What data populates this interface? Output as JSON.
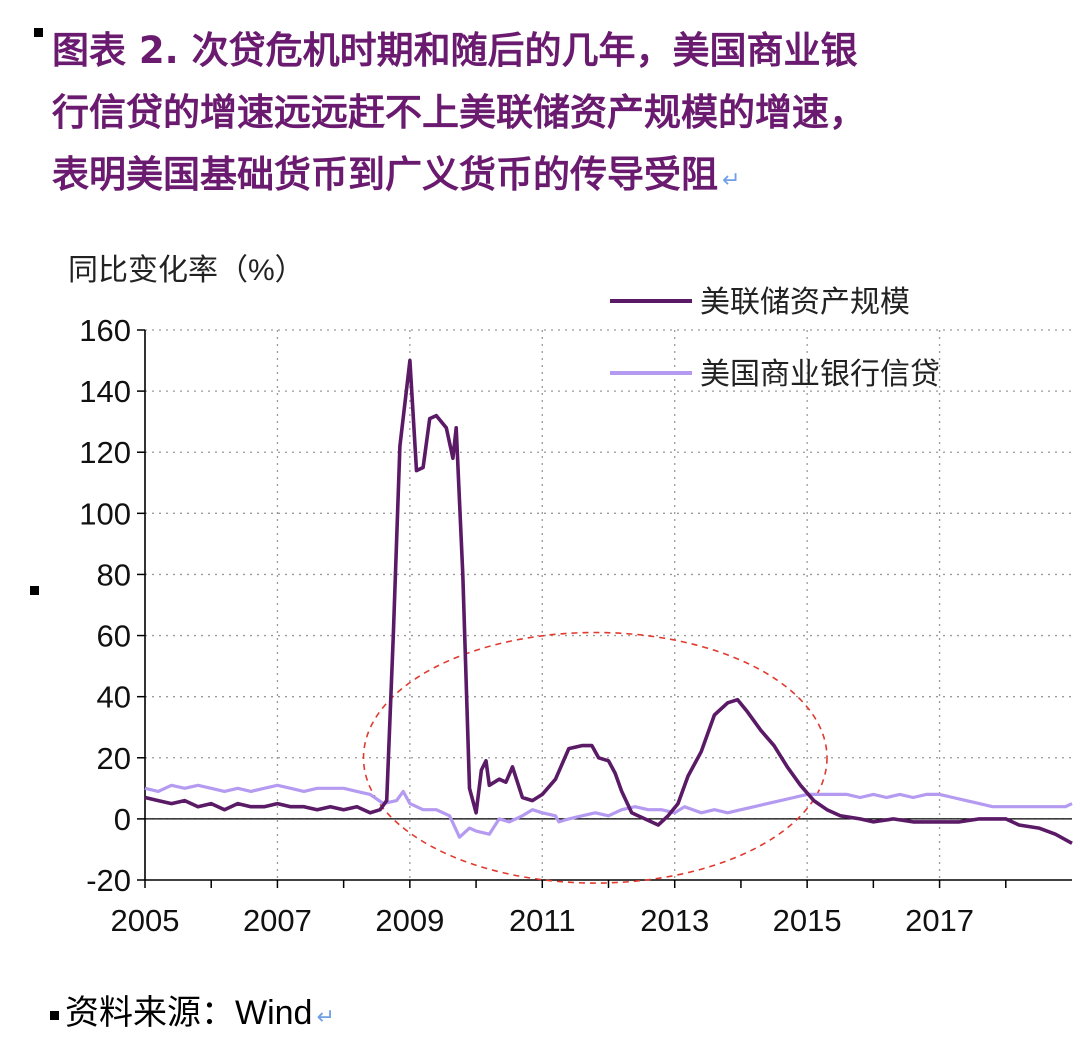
{
  "title": {
    "line1": "图表 2. 次贷危机时期和随后的几年，美国商业银",
    "line2": "行信贷的增速远远赶不上美联储资产规模的增速，",
    "line3": "表明美国基础货币到广义货币的传导受阻",
    "return_mark": "↵"
  },
  "source": {
    "text": "资料来源：Wind",
    "return_mark": "↵"
  },
  "chart_data": {
    "type": "line",
    "ylabel": "同比变化率（%）",
    "xlabel": "",
    "ylim": [
      -20,
      160
    ],
    "yticks": [
      -20,
      0,
      20,
      40,
      60,
      80,
      100,
      120,
      140,
      160
    ],
    "xlim": [
      2005,
      2019
    ],
    "xticks": [
      2005,
      2007,
      2009,
      2011,
      2013,
      2015,
      2017
    ],
    "grid": "dotted",
    "legend_position": "top-right",
    "annotation": "dashed red ellipse highlighting 2008–2015",
    "series": [
      {
        "name": "美联储资产规模",
        "color": "#5a1a66",
        "points": [
          [
            2005.0,
            7
          ],
          [
            2005.2,
            6
          ],
          [
            2005.4,
            5
          ],
          [
            2005.6,
            6
          ],
          [
            2005.8,
            4
          ],
          [
            2006.0,
            5
          ],
          [
            2006.2,
            3
          ],
          [
            2006.4,
            5
          ],
          [
            2006.6,
            4
          ],
          [
            2006.8,
            4
          ],
          [
            2007.0,
            5
          ],
          [
            2007.2,
            4
          ],
          [
            2007.4,
            4
          ],
          [
            2007.6,
            3
          ],
          [
            2007.8,
            4
          ],
          [
            2008.0,
            3
          ],
          [
            2008.2,
            4
          ],
          [
            2008.4,
            2
          ],
          [
            2008.55,
            3
          ],
          [
            2008.65,
            6
          ],
          [
            2008.75,
            60
          ],
          [
            2008.85,
            122
          ],
          [
            2009.0,
            150
          ],
          [
            2009.1,
            114
          ],
          [
            2009.2,
            115
          ],
          [
            2009.3,
            131
          ],
          [
            2009.4,
            132
          ],
          [
            2009.55,
            128
          ],
          [
            2009.65,
            118
          ],
          [
            2009.7,
            128
          ],
          [
            2009.8,
            80
          ],
          [
            2009.9,
            10
          ],
          [
            2010.0,
            2
          ],
          [
            2010.08,
            16
          ],
          [
            2010.15,
            19
          ],
          [
            2010.2,
            11
          ],
          [
            2010.35,
            13
          ],
          [
            2010.45,
            12
          ],
          [
            2010.55,
            17
          ],
          [
            2010.7,
            7
          ],
          [
            2010.85,
            6
          ],
          [
            2011.0,
            8
          ],
          [
            2011.2,
            13
          ],
          [
            2011.4,
            23
          ],
          [
            2011.6,
            24
          ],
          [
            2011.75,
            24
          ],
          [
            2011.85,
            20
          ],
          [
            2012.0,
            19
          ],
          [
            2012.1,
            15
          ],
          [
            2012.2,
            9
          ],
          [
            2012.35,
            2
          ],
          [
            2012.55,
            0
          ],
          [
            2012.75,
            -2
          ],
          [
            2012.9,
            1
          ],
          [
            2013.05,
            5
          ],
          [
            2013.2,
            14
          ],
          [
            2013.4,
            22
          ],
          [
            2013.6,
            34
          ],
          [
            2013.8,
            38
          ],
          [
            2013.95,
            39
          ],
          [
            2014.1,
            35
          ],
          [
            2014.3,
            29
          ],
          [
            2014.5,
            24
          ],
          [
            2014.7,
            17
          ],
          [
            2014.9,
            11
          ],
          [
            2015.1,
            6
          ],
          [
            2015.3,
            3
          ],
          [
            2015.5,
            1
          ],
          [
            2015.8,
            0
          ],
          [
            2016.0,
            -1
          ],
          [
            2016.3,
            0
          ],
          [
            2016.6,
            -1
          ],
          [
            2017.0,
            -1
          ],
          [
            2017.3,
            -1
          ],
          [
            2017.6,
            0
          ],
          [
            2017.8,
            0
          ],
          [
            2018.0,
            0
          ],
          [
            2018.2,
            -2
          ],
          [
            2018.5,
            -3
          ],
          [
            2018.75,
            -5
          ],
          [
            2019.0,
            -8
          ]
        ]
      },
      {
        "name": "美国商业银行信贷",
        "color": "#b49af0",
        "points": [
          [
            2005.0,
            10
          ],
          [
            2005.2,
            9
          ],
          [
            2005.4,
            11
          ],
          [
            2005.6,
            10
          ],
          [
            2005.8,
            11
          ],
          [
            2006.0,
            10
          ],
          [
            2006.2,
            9
          ],
          [
            2006.4,
            10
          ],
          [
            2006.6,
            9
          ],
          [
            2006.8,
            10
          ],
          [
            2007.0,
            11
          ],
          [
            2007.2,
            10
          ],
          [
            2007.4,
            9
          ],
          [
            2007.6,
            10
          ],
          [
            2007.8,
            10
          ],
          [
            2008.0,
            10
          ],
          [
            2008.2,
            9
          ],
          [
            2008.4,
            8
          ],
          [
            2008.6,
            5
          ],
          [
            2008.8,
            6
          ],
          [
            2008.9,
            9
          ],
          [
            2009.0,
            5
          ],
          [
            2009.2,
            3
          ],
          [
            2009.4,
            3
          ],
          [
            2009.6,
            1
          ],
          [
            2009.75,
            -6
          ],
          [
            2009.9,
            -3
          ],
          [
            2010.0,
            -4
          ],
          [
            2010.2,
            -5
          ],
          [
            2010.35,
            0
          ],
          [
            2010.5,
            -1
          ],
          [
            2010.7,
            1
          ],
          [
            2010.85,
            3
          ],
          [
            2011.0,
            2
          ],
          [
            2011.2,
            1
          ],
          [
            2011.25,
            -1
          ],
          [
            2011.4,
            0
          ],
          [
            2011.6,
            1
          ],
          [
            2011.8,
            2
          ],
          [
            2012.0,
            1
          ],
          [
            2012.2,
            3
          ],
          [
            2012.4,
            4
          ],
          [
            2012.6,
            3
          ],
          [
            2012.8,
            3
          ],
          [
            2013.0,
            2
          ],
          [
            2013.15,
            4
          ],
          [
            2013.4,
            2
          ],
          [
            2013.6,
            3
          ],
          [
            2013.8,
            2
          ],
          [
            2014.0,
            3
          ],
          [
            2014.2,
            4
          ],
          [
            2014.4,
            5
          ],
          [
            2014.6,
            6
          ],
          [
            2014.8,
            7
          ],
          [
            2015.0,
            8
          ],
          [
            2015.2,
            8
          ],
          [
            2015.4,
            8
          ],
          [
            2015.6,
            8
          ],
          [
            2015.8,
            7
          ],
          [
            2016.0,
            8
          ],
          [
            2016.2,
            7
          ],
          [
            2016.4,
            8
          ],
          [
            2016.6,
            7
          ],
          [
            2016.8,
            8
          ],
          [
            2017.0,
            8
          ],
          [
            2017.2,
            7
          ],
          [
            2017.4,
            6
          ],
          [
            2017.6,
            5
          ],
          [
            2017.8,
            4
          ],
          [
            2018.0,
            4
          ],
          [
            2018.3,
            4
          ],
          [
            2018.6,
            4
          ],
          [
            2018.9,
            4
          ],
          [
            2019.0,
            5
          ]
        ]
      }
    ]
  }
}
